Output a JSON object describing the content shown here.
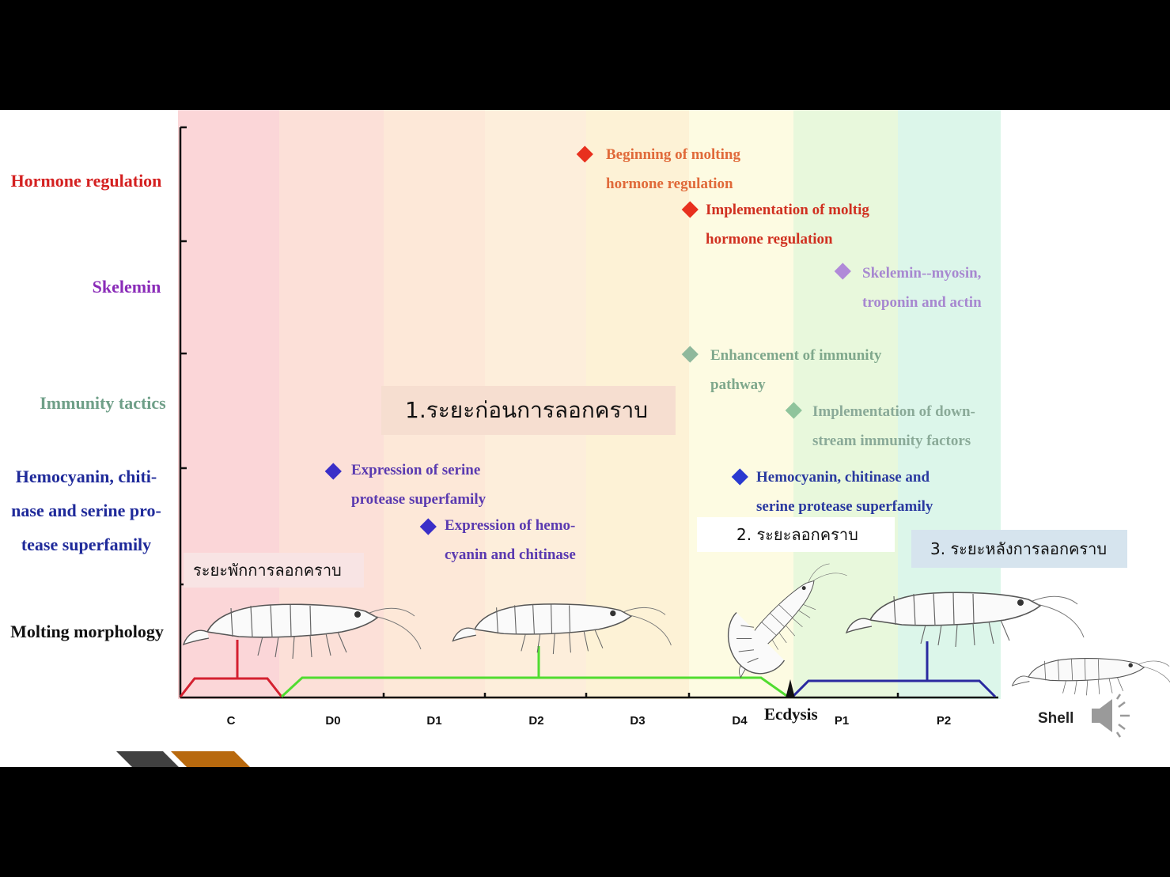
{
  "rows": [
    {
      "id": "hormone",
      "label_lines": [
        "Hormone regulation"
      ],
      "color": "#d42020"
    },
    {
      "id": "skelemin",
      "label_lines": [
        "Skelemin"
      ],
      "color": "#8a2bb8"
    },
    {
      "id": "immunity",
      "label_lines": [
        "Immunity tactics"
      ],
      "color": "#6f9f88"
    },
    {
      "id": "hemocyanin",
      "label_lines": [
        "Hemocyanin, chiti-",
        "nase and serine pro-",
        "tease superfamily"
      ],
      "color": "#1f2a9a"
    },
    {
      "id": "morphology",
      "label_lines": [
        "Molting morphology"
      ],
      "color": "#111111"
    }
  ],
  "events": [
    {
      "id": "beginning-molting",
      "lines": [
        "Beginning of molting",
        "hormone regulation"
      ],
      "marker_color": "#e8301e",
      "text_color": "#e06a3a"
    },
    {
      "id": "implementation-moltig",
      "lines": [
        "Implementation of moltig",
        "hormone regulation"
      ],
      "marker_color": "#e8301e",
      "text_color": "#d03020"
    },
    {
      "id": "skelemin-myosin",
      "lines": [
        "Skelemin--myosin,",
        "troponin and actin"
      ],
      "marker_color": "#b08ad8",
      "text_color": "#a788d0"
    },
    {
      "id": "enhancement-immunity",
      "lines": [
        "Enhancement of immunity",
        "pathway"
      ],
      "marker_color": "#8fb89c",
      "text_color": "#7fa88c"
    },
    {
      "id": "downstream-immunity",
      "lines": [
        "Implementation of down-",
        "stream  immunity factors"
      ],
      "marker_color": "#8fc49c",
      "text_color": "#8aaa98"
    },
    {
      "id": "serine-protease",
      "lines": [
        "Expression of serine",
        "protease superfamily"
      ],
      "marker_color": "#3a2fc8",
      "text_color": "#5a3ab0"
    },
    {
      "id": "hemocyanin-chitinase",
      "lines": [
        "Expression of hemo-",
        "cyanin and chitinase"
      ],
      "marker_color": "#3a2fc8",
      "text_color": "#5a3ab0"
    },
    {
      "id": "hemocyanin-serine",
      "lines": [
        "Hemocyanin, chitinase and",
        "serine protease superfamily"
      ],
      "marker_color": "#2a3ad0",
      "text_color": "#2a3aa0"
    }
  ],
  "thai_labels": {
    "premolt": "1.ระยะก่อนการลอกคราบ",
    "ecdysis_phase": "2. ระยะลอกคราบ",
    "postmolt": "3. ระยะหลังการลอกคราบ",
    "intermolt": "ระยะพักการลอกคราบ"
  },
  "stages": [
    "C",
    "D0",
    "D1",
    "D2",
    "D3",
    "D4",
    "P1",
    "P2"
  ],
  "ecdysis_label": "Ecdysis",
  "shell_label": "Shell",
  "colors": {
    "background": "#000000",
    "axis": "#111111",
    "intermolt_bracket": "#d42030",
    "premolt_bracket": "#50dc30",
    "postmolt_bracket": "#2a2aa0"
  }
}
